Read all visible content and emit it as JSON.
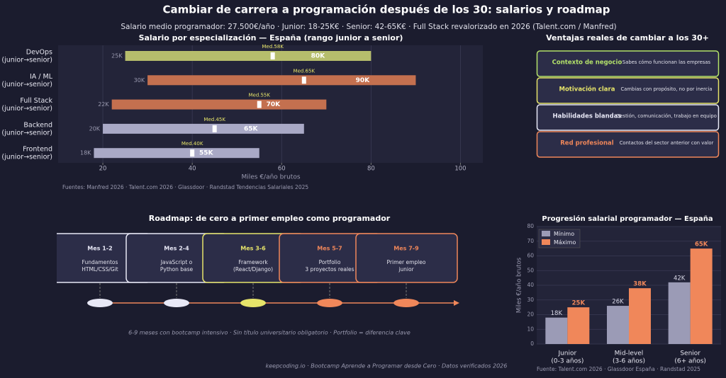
{
  "header": {
    "title": "Cambiar de carrera a programación después de los 30: salarios y roadmap",
    "subtitle": "Salario medio programador: 27.500€/año · Junior: 18-25K€ · Senior: 42-65K€ · Full Stack revalorizado en 2026 (Talent.com / Manfred)"
  },
  "chart_data": [
    {
      "type": "range_bar",
      "title": "Salario por especialización — España (rango junior a senior)",
      "categories": [
        "DevOps\n(junior→senior)",
        "IA / ML\n(junior→senior)",
        "Full Stack\n(junior→senior)",
        "Backend\n(junior→senior)",
        "Frontend\n(junior→senior)"
      ],
      "min": [
        25,
        30,
        22,
        20,
        18
      ],
      "max": [
        80,
        90,
        70,
        65,
        55
      ],
      "median": [
        58,
        65,
        55,
        45,
        40
      ],
      "min_labels": [
        "25K",
        "30K",
        "22K",
        "20K",
        "18K"
      ],
      "max_labels": [
        "80K",
        "90K",
        "70K",
        "65K",
        "55K"
      ],
      "median_labels": [
        "Med.58K",
        "Med.65K",
        "Med.55K",
        "Med.45K",
        "Med.40K"
      ],
      "colors": [
        "#b6bd6c",
        "#c4704f",
        "#c4704f",
        "#a9a9c6",
        "#a9a9c6"
      ],
      "xlim": [
        10,
        105
      ],
      "xticks": [
        20,
        40,
        60,
        80,
        100
      ],
      "xlabel": "Miles €/año brutos",
      "grid": true,
      "source": "Fuentes: Manfred 2026 · Talent.com 2026 · Glassdoor · Randstad Tendencias Salariales 2025"
    },
    {
      "type": "bar",
      "title": "Progresión salarial programador — España",
      "categories": [
        "Junior\n(0-3 años)",
        "Mid-level\n(3-6 años)",
        "Senior\n(6+ años)"
      ],
      "series": [
        {
          "name": "Mínimo",
          "color": "#9b9bb6",
          "values": [
            18,
            26,
            42
          ],
          "value_labels": [
            "18K",
            "26K",
            "42K"
          ]
        },
        {
          "name": "Máximo",
          "color": "#f0875a",
          "values": [
            25,
            38,
            65
          ],
          "value_labels": [
            "25K",
            "38K",
            "65K"
          ]
        }
      ],
      "ylim": [
        0,
        80
      ],
      "yticks": [
        0,
        10,
        20,
        30,
        40,
        50,
        60,
        70,
        80
      ],
      "ylabel": "Miles €/año brutos",
      "grid": true,
      "legend": "upper-left",
      "source": "Fuente: Talent.com 2026 · Glassdoor España · Randstad 2025"
    }
  ],
  "advantages": {
    "title": "Ventajas reales de cambiar a los 30+",
    "items": [
      {
        "label": "Contexto de negocio",
        "text": "Sabes cómo funcionan las empresas",
        "color": "#b4e26a"
      },
      {
        "label": "Motivación clara",
        "text": "Cambias con propósito, no por inercia",
        "color": "#e6e46a"
      },
      {
        "label": "Habilidades blandas",
        "text": "Gestión, comunicación, trabajo en equipo",
        "color": "#e8e8f6"
      },
      {
        "label": "Red profesional",
        "text": "Contactos del sector anterior con valor",
        "color": "#f0875a"
      }
    ]
  },
  "roadmap": {
    "title": "Roadmap: de cero a primer empleo como programador",
    "steps": [
      {
        "label": "Mes 1-2",
        "text": "Fundamentos\nHTML/CSS/Git",
        "color": "#e8e8f6"
      },
      {
        "label": "Mes 2-4",
        "text": "JavaScript o\nPython base",
        "color": "#e8e8f6"
      },
      {
        "label": "Mes 3-6",
        "text": "Framework\n(React/Django)",
        "color": "#e6e46a"
      },
      {
        "label": "Mes 5-7",
        "text": "Portfolio\n3 proyectos reales",
        "color": "#f0875a"
      },
      {
        "label": "Mes 7-9",
        "text": "Primer empleo\njunior",
        "color": "#f0875a"
      }
    ],
    "note": "6-9 meses con bootcamp intensivo · Sin título universitario obligatorio · Portfolio = diferencia clave"
  },
  "footer": "keepcoding.io  ·  Bootcamp Aprende a Programar desde Cero  ·  Datos verificados 2026"
}
